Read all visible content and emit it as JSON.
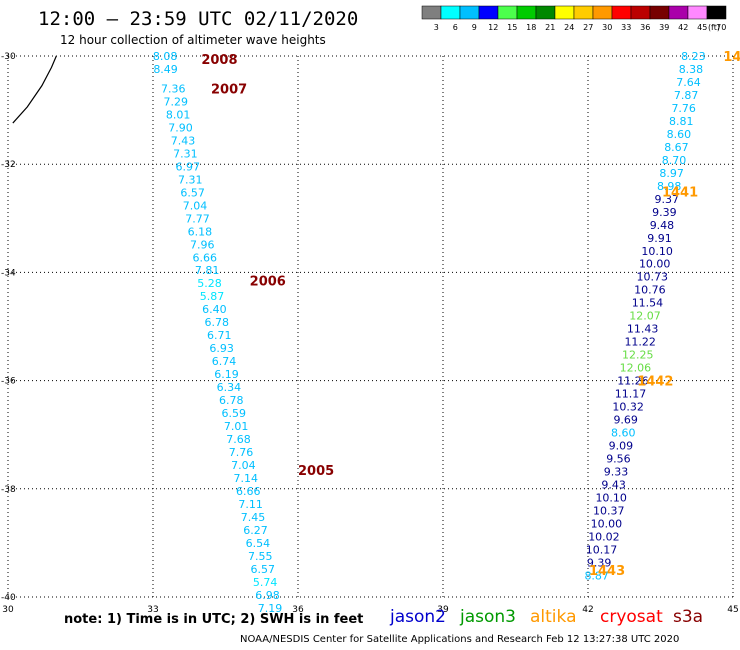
{
  "header": {
    "title": "12:00 – 23:59 UTC 02/11/2020",
    "subtitle": "12 hour collection of altimeter wave heights"
  },
  "legend": {
    "unit": "(ft)",
    "bins": [
      {
        "label": "3",
        "color": "#7f7f7f"
      },
      {
        "label": "6",
        "color": "#00ffff"
      },
      {
        "label": "9",
        "color": "#00bfff"
      },
      {
        "label": "12",
        "color": "#0000ff"
      },
      {
        "label": "15",
        "color": "#4cff4c"
      },
      {
        "label": "18",
        "color": "#00cc00"
      },
      {
        "label": "21",
        "color": "#008800"
      },
      {
        "label": "24",
        "color": "#ffff00"
      },
      {
        "label": "27",
        "color": "#ffcc00"
      },
      {
        "label": "30",
        "color": "#ff9900"
      },
      {
        "label": "33",
        "color": "#ff0000"
      },
      {
        "label": "36",
        "color": "#bb0000"
      },
      {
        "label": "39",
        "color": "#770000"
      },
      {
        "label": "42",
        "color": "#aa00aa"
      },
      {
        "label": "45",
        "color": "#ff88ff"
      },
      {
        "label": "70",
        "color": "#000000"
      }
    ]
  },
  "footer": {
    "note": "note:  1) Time is in UTC;  2) SWH is in feet",
    "credit": "NOAA/NESDIS Center for Satellite Applications and Research     Feb 12 13:27:38 UTC 2020",
    "satellites": [
      {
        "name": "jason2",
        "color": "#0000cc"
      },
      {
        "name": "jason3",
        "color": "#009900"
      },
      {
        "name": "altika",
        "color": "#ff9900"
      },
      {
        "name": "cryosat",
        "color": "#ff0000"
      },
      {
        "name": "s3a",
        "color": "#880000"
      }
    ]
  },
  "chart_data": {
    "type": "scatter",
    "xlim": [
      30,
      45
    ],
    "ylim": [
      -40,
      -30
    ],
    "x_ticks": [
      "30",
      "33",
      "36",
      "39",
      "42",
      "45"
    ],
    "y_ticks": [
      "-30",
      "-32",
      "-34",
      "-36",
      "-38",
      "-40"
    ],
    "grid": true,
    "coastline": [
      [
        30.1,
        -31.24
      ],
      [
        30.4,
        -30.94
      ],
      [
        30.7,
        -30.55
      ],
      [
        30.9,
        -30.21
      ],
      [
        31.0,
        -30.0
      ]
    ],
    "time_labels": [
      {
        "text": "2008",
        "lon": 34.0,
        "lat": -30.06,
        "color": "#880000"
      },
      {
        "text": "2007",
        "lon": 34.2,
        "lat": -30.6,
        "color": "#880000"
      },
      {
        "text": "2006",
        "lon": 35.0,
        "lat": -34.15,
        "color": "#880000"
      },
      {
        "text": "2005",
        "lon": 36.0,
        "lat": -37.65,
        "color": "#880000"
      },
      {
        "text": "1441",
        "lon": 43.53,
        "lat": -32.5,
        "color": "#ff9900"
      },
      {
        "text": "1442",
        "lon": 43.02,
        "lat": -36.0,
        "color": "#ff9900"
      },
      {
        "text": "1443",
        "lon": 42.02,
        "lat": -39.5,
        "color": "#ff9900"
      },
      {
        "text": "14",
        "lon": 44.8,
        "lat": -30.0,
        "color": "#ff9900"
      }
    ],
    "tracks": [
      {
        "pass": "west",
        "points": [
          {
            "lon": 33.25,
            "lat": -30.0,
            "swh": "8.08",
            "color": "#00bfff"
          },
          {
            "lon": 33.26,
            "lat": -30.24,
            "swh": "8.49",
            "color": "#00bfff"
          },
          {
            "lon": 33.42,
            "lat": -30.6,
            "swh": "7.36",
            "color": "#00bfff"
          },
          {
            "lon": 33.47,
            "lat": -30.84,
            "swh": "7.29",
            "color": "#00bfff"
          },
          {
            "lon": 33.52,
            "lat": -31.08,
            "swh": "8.01",
            "color": "#00bfff"
          },
          {
            "lon": 33.57,
            "lat": -31.32,
            "swh": "7.90",
            "color": "#00bfff"
          },
          {
            "lon": 33.62,
            "lat": -31.56,
            "swh": "7.43",
            "color": "#00bfff"
          },
          {
            "lon": 33.67,
            "lat": -31.8,
            "swh": "7.31",
            "color": "#00bfff"
          },
          {
            "lon": 33.72,
            "lat": -32.04,
            "swh": "6.97",
            "color": "#00bfff"
          },
          {
            "lon": 33.77,
            "lat": -32.28,
            "swh": "7.31",
            "color": "#00bfff"
          },
          {
            "lon": 33.82,
            "lat": -32.52,
            "swh": "6.57",
            "color": "#00bfff"
          },
          {
            "lon": 33.87,
            "lat": -32.76,
            "swh": "7.04",
            "color": "#00bfff"
          },
          {
            "lon": 33.92,
            "lat": -33.0,
            "swh": "7.77",
            "color": "#00bfff"
          },
          {
            "lon": 33.97,
            "lat": -33.24,
            "swh": "6.18",
            "color": "#00bfff"
          },
          {
            "lon": 34.02,
            "lat": -33.48,
            "swh": "7.96",
            "color": "#00bfff"
          },
          {
            "lon": 34.07,
            "lat": -33.72,
            "swh": "6.66",
            "color": "#00bfff"
          },
          {
            "lon": 34.12,
            "lat": -33.96,
            "swh": "7.81",
            "color": "#00bfff"
          },
          {
            "lon": 34.17,
            "lat": -34.2,
            "swh": "5.28",
            "color": "#00e5ff"
          },
          {
            "lon": 34.22,
            "lat": -34.44,
            "swh": "5.87",
            "color": "#00e5ff"
          },
          {
            "lon": 34.27,
            "lat": -34.68,
            "swh": "6.40",
            "color": "#00bfff"
          },
          {
            "lon": 34.32,
            "lat": -34.92,
            "swh": "6.78",
            "color": "#00bfff"
          },
          {
            "lon": 34.37,
            "lat": -35.16,
            "swh": "6.71",
            "color": "#00bfff"
          },
          {
            "lon": 34.42,
            "lat": -35.4,
            "swh": "6.93",
            "color": "#00bfff"
          },
          {
            "lon": 34.47,
            "lat": -35.64,
            "swh": "6.74",
            "color": "#00bfff"
          },
          {
            "lon": 34.52,
            "lat": -35.88,
            "swh": "6.19",
            "color": "#00bfff"
          },
          {
            "lon": 34.57,
            "lat": -36.12,
            "swh": "6.34",
            "color": "#00bfff"
          },
          {
            "lon": 34.62,
            "lat": -36.36,
            "swh": "6.78",
            "color": "#00bfff"
          },
          {
            "lon": 34.67,
            "lat": -36.6,
            "swh": "6.59",
            "color": "#00bfff"
          },
          {
            "lon": 34.72,
            "lat": -36.84,
            "swh": "7.01",
            "color": "#00bfff"
          },
          {
            "lon": 34.77,
            "lat": -37.08,
            "swh": "7.68",
            "color": "#00bfff"
          },
          {
            "lon": 34.82,
            "lat": -37.32,
            "swh": "7.76",
            "color": "#00bfff"
          },
          {
            "lon": 34.87,
            "lat": -37.56,
            "swh": "7.04",
            "color": "#00bfff"
          },
          {
            "lon": 34.92,
            "lat": -37.8,
            "swh": "7.14",
            "color": "#00bfff"
          },
          {
            "lon": 34.97,
            "lat": -38.04,
            "swh": "6.66",
            "color": "#00bfff"
          },
          {
            "lon": 35.02,
            "lat": -38.28,
            "swh": "7.11",
            "color": "#00bfff"
          },
          {
            "lon": 35.07,
            "lat": -38.52,
            "swh": "7.45",
            "color": "#00bfff"
          },
          {
            "lon": 35.12,
            "lat": -38.76,
            "swh": "6.27",
            "color": "#00bfff"
          },
          {
            "lon": 35.17,
            "lat": -39.0,
            "swh": "6.54",
            "color": "#00bfff"
          },
          {
            "lon": 35.22,
            "lat": -39.24,
            "swh": "7.55",
            "color": "#00bfff"
          },
          {
            "lon": 35.27,
            "lat": -39.48,
            "swh": "6.57",
            "color": "#00bfff"
          },
          {
            "lon": 35.32,
            "lat": -39.72,
            "swh": "5.74",
            "color": "#00e5ff"
          },
          {
            "lon": 35.37,
            "lat": -39.96,
            "swh": "6.98",
            "color": "#00bfff"
          },
          {
            "lon": 35.42,
            "lat": -40.2,
            "swh": "7.19",
            "color": "#00bfff"
          }
        ]
      },
      {
        "pass": "east",
        "points": [
          {
            "lon": 44.18,
            "lat": -30.0,
            "swh": "8.23",
            "color": "#00bfff"
          },
          {
            "lon": 44.13,
            "lat": -30.24,
            "swh": "8.38",
            "color": "#00bfff"
          },
          {
            "lon": 44.08,
            "lat": -30.48,
            "swh": "7.64",
            "color": "#00bfff"
          },
          {
            "lon": 44.03,
            "lat": -30.72,
            "swh": "7.87",
            "color": "#00bfff"
          },
          {
            "lon": 43.98,
            "lat": -30.96,
            "swh": "7.76",
            "color": "#00bfff"
          },
          {
            "lon": 43.93,
            "lat": -31.2,
            "swh": "8.81",
            "color": "#00bfff"
          },
          {
            "lon": 43.88,
            "lat": -31.44,
            "swh": "8.60",
            "color": "#00bfff"
          },
          {
            "lon": 43.83,
            "lat": -31.68,
            "swh": "8.67",
            "color": "#00bfff"
          },
          {
            "lon": 43.78,
            "lat": -31.92,
            "swh": "8.70",
            "color": "#00bfff"
          },
          {
            "lon": 43.73,
            "lat": -32.16,
            "swh": "8.97",
            "color": "#00bfff"
          },
          {
            "lon": 43.68,
            "lat": -32.4,
            "swh": "8.98",
            "color": "#00bfff"
          },
          {
            "lon": 43.63,
            "lat": -32.64,
            "swh": "9.37",
            "color": "#00008b"
          },
          {
            "lon": 43.58,
            "lat": -32.88,
            "swh": "9.39",
            "color": "#00008b"
          },
          {
            "lon": 43.53,
            "lat": -33.12,
            "swh": "9.48",
            "color": "#00008b"
          },
          {
            "lon": 43.48,
            "lat": -33.36,
            "swh": "9.91",
            "color": "#00008b"
          },
          {
            "lon": 43.43,
            "lat": -33.6,
            "swh": "10.10",
            "color": "#00008b"
          },
          {
            "lon": 43.38,
            "lat": -33.84,
            "swh": "10.00",
            "color": "#00008b"
          },
          {
            "lon": 43.33,
            "lat": -34.08,
            "swh": "10.73",
            "color": "#00008b"
          },
          {
            "lon": 43.28,
            "lat": -34.32,
            "swh": "10.76",
            "color": "#00008b"
          },
          {
            "lon": 43.23,
            "lat": -34.56,
            "swh": "11.54",
            "color": "#00008b"
          },
          {
            "lon": 43.18,
            "lat": -34.8,
            "swh": "12.07",
            "color": "#66dd44"
          },
          {
            "lon": 43.13,
            "lat": -35.04,
            "swh": "11.43",
            "color": "#00008b"
          },
          {
            "lon": 43.08,
            "lat": -35.28,
            "swh": "11.22",
            "color": "#00008b"
          },
          {
            "lon": 43.03,
            "lat": -35.52,
            "swh": "12.25",
            "color": "#66dd44"
          },
          {
            "lon": 42.98,
            "lat": -35.76,
            "swh": "12.06",
            "color": "#66dd44"
          },
          {
            "lon": 42.93,
            "lat": -36.0,
            "swh": "11.26",
            "color": "#00008b"
          },
          {
            "lon": 42.88,
            "lat": -36.24,
            "swh": "11.17",
            "color": "#00008b"
          },
          {
            "lon": 42.83,
            "lat": -36.48,
            "swh": "10.32",
            "color": "#00008b"
          },
          {
            "lon": 42.78,
            "lat": -36.72,
            "swh": "9.69",
            "color": "#00008b"
          },
          {
            "lon": 42.73,
            "lat": -36.96,
            "swh": "8.60",
            "color": "#00bfff"
          },
          {
            "lon": 42.68,
            "lat": -37.2,
            "swh": "9.09",
            "color": "#00008b"
          },
          {
            "lon": 42.63,
            "lat": -37.44,
            "swh": "9.56",
            "color": "#00008b"
          },
          {
            "lon": 42.58,
            "lat": -37.68,
            "swh": "9.33",
            "color": "#00008b"
          },
          {
            "lon": 42.53,
            "lat": -37.92,
            "swh": "9.43",
            "color": "#00008b"
          },
          {
            "lon": 42.48,
            "lat": -38.16,
            "swh": "10.10",
            "color": "#00008b"
          },
          {
            "lon": 42.43,
            "lat": -38.4,
            "swh": "10.37",
            "color": "#00008b"
          },
          {
            "lon": 42.38,
            "lat": -38.64,
            "swh": "10.00",
            "color": "#00008b"
          },
          {
            "lon": 42.33,
            "lat": -38.88,
            "swh": "10.02",
            "color": "#00008b"
          },
          {
            "lon": 42.28,
            "lat": -39.12,
            "swh": "10.17",
            "color": "#00008b"
          },
          {
            "lon": 42.23,
            "lat": -39.36,
            "swh": "9.39",
            "color": "#00008b"
          },
          {
            "lon": 42.18,
            "lat": -39.6,
            "swh": "8.87",
            "color": "#00bfff"
          }
        ]
      }
    ]
  }
}
